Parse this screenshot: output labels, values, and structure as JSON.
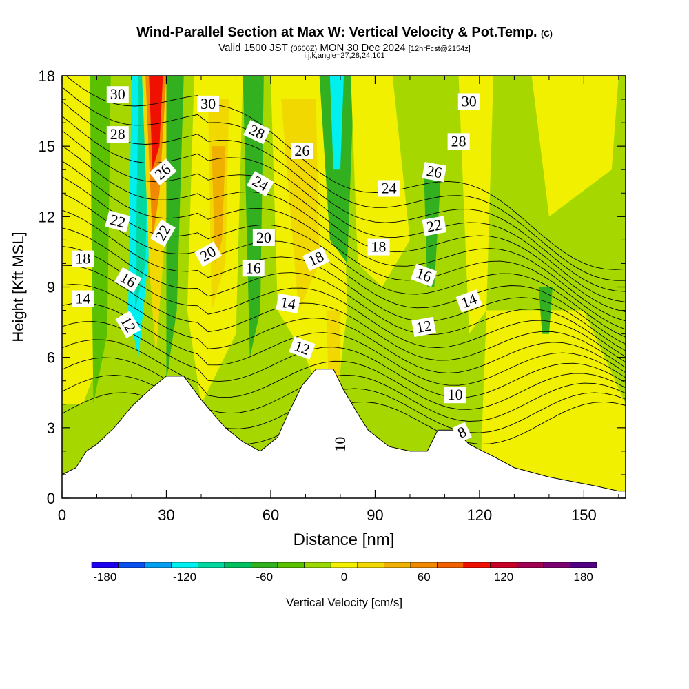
{
  "header": {
    "title_main": "Wind-Parallel Section at Max W: Vertical Velocity & Pot.Temp.",
    "title_mark": "(C)",
    "valid_a": "Valid 1500 JST ",
    "valid_b": "(0600Z)",
    "valid_c": " MON 30 Dec 2024 ",
    "valid_d": "[12hrFcst@2154z]",
    "indices": "i,j,k,angle=27,28,24,101"
  },
  "chart_data": {
    "type": "heatmap",
    "xlabel": "Distance [nm]",
    "ylabel": "Height [Kft MSL]",
    "xlim": [
      0,
      162
    ],
    "ylim": [
      0,
      18
    ],
    "xticks": [
      0,
      30,
      60,
      90,
      120,
      150
    ],
    "yticks": [
      0,
      3,
      6,
      9,
      12,
      15,
      18
    ],
    "colorbar": {
      "label": "Vertical Velocity [cm/s]",
      "ticks": [
        -180,
        -120,
        -60,
        0,
        60,
        120,
        180
      ],
      "colors": [
        "#1c00f0",
        "#0a50f0",
        "#00a0f0",
        "#00f0f0",
        "#00d8a0",
        "#00c060",
        "#32b020",
        "#5ac000",
        "#9ad800",
        "#f0f000",
        "#f0d800",
        "#f0b000",
        "#f08800",
        "#f06000",
        "#f01000",
        "#c80028",
        "#a00050",
        "#7a0070",
        "#500080"
      ],
      "edges": [
        -190,
        -170,
        -150,
        -130,
        -110,
        -90,
        -70,
        -50,
        -30,
        -10,
        10,
        30,
        50,
        70,
        90,
        110,
        130,
        150,
        170,
        190
      ]
    },
    "background_color": "#a6d800",
    "updraft_color": "#f0f000",
    "terrain": [
      [
        0,
        1
      ],
      [
        4,
        1.3
      ],
      [
        7,
        2
      ],
      [
        10,
        2.3
      ],
      [
        15,
        3
      ],
      [
        20,
        3.9
      ],
      [
        25,
        4.6
      ],
      [
        30,
        5.2
      ],
      [
        35,
        5.2
      ],
      [
        40,
        4.2
      ],
      [
        44,
        3.5
      ],
      [
        47,
        3
      ],
      [
        52,
        2.4
      ],
      [
        57,
        2
      ],
      [
        62,
        2.6
      ],
      [
        65,
        3.6
      ],
      [
        69,
        4.8
      ],
      [
        73,
        5.5
      ],
      [
        78,
        5.5
      ],
      [
        81,
        4.6
      ],
      [
        85,
        3.6
      ],
      [
        88,
        2.9
      ],
      [
        94,
        2.2
      ],
      [
        100,
        2
      ],
      [
        105,
        2
      ],
      [
        108,
        2.9
      ],
      [
        113,
        2.9
      ],
      [
        117,
        2.3
      ],
      [
        121,
        2
      ],
      [
        125,
        1.7
      ],
      [
        130,
        1.3
      ],
      [
        135,
        1.1
      ],
      [
        140,
        0.9
      ],
      [
        147,
        0.7
      ],
      [
        154,
        0.5
      ],
      [
        160,
        0.3
      ],
      [
        162,
        0.3
      ]
    ],
    "contour_labels": [
      {
        "text": "30",
        "x": 16,
        "y": 17.2,
        "rot": 0
      },
      {
        "text": "30",
        "x": 42,
        "y": 16.8,
        "rot": 0
      },
      {
        "text": "30",
        "x": 117,
        "y": 16.9,
        "rot": 0
      },
      {
        "text": "28",
        "x": 16,
        "y": 15.5,
        "rot": 0
      },
      {
        "text": "28",
        "x": 56,
        "y": 15.6,
        "rot": 25
      },
      {
        "text": "28",
        "x": 114,
        "y": 15.2,
        "rot": 0
      },
      {
        "text": "26",
        "x": 29,
        "y": 13.9,
        "rot": -40
      },
      {
        "text": "26",
        "x": 69,
        "y": 14.8,
        "rot": 0
      },
      {
        "text": "26",
        "x": 107,
        "y": 13.9,
        "rot": 10
      },
      {
        "text": "24",
        "x": 57,
        "y": 13.4,
        "rot": 30
      },
      {
        "text": "24",
        "x": 94,
        "y": 13.2,
        "rot": 0
      },
      {
        "text": "22",
        "x": 16,
        "y": 11.8,
        "rot": 15
      },
      {
        "text": "22",
        "x": 29,
        "y": 11.3,
        "rot": -60
      },
      {
        "text": "22",
        "x": 107,
        "y": 11.6,
        "rot": -10
      },
      {
        "text": "20",
        "x": 42,
        "y": 10.4,
        "rot": -30
      },
      {
        "text": "20",
        "x": 58,
        "y": 11.1,
        "rot": 0
      },
      {
        "text": "18",
        "x": 6,
        "y": 10.2,
        "rot": 0
      },
      {
        "text": "18",
        "x": 73,
        "y": 10.2,
        "rot": -25
      },
      {
        "text": "18",
        "x": 91,
        "y": 10.7,
        "rot": 0
      },
      {
        "text": "16",
        "x": 19,
        "y": 9.3,
        "rot": 30
      },
      {
        "text": "16",
        "x": 55,
        "y": 9.8,
        "rot": 0
      },
      {
        "text": "16",
        "x": 104,
        "y": 9.5,
        "rot": 20
      },
      {
        "text": "14",
        "x": 6,
        "y": 8.5,
        "rot": 0
      },
      {
        "text": "14",
        "x": 65,
        "y": 8.3,
        "rot": 10
      },
      {
        "text": "14",
        "x": 117,
        "y": 8.4,
        "rot": -20
      },
      {
        "text": "12",
        "x": 19,
        "y": 7.4,
        "rot": 60
      },
      {
        "text": "12",
        "x": 69,
        "y": 6.4,
        "rot": 20
      },
      {
        "text": "12",
        "x": 104,
        "y": 7.3,
        "rot": -10
      },
      {
        "text": "10",
        "x": 80,
        "y": 2.3,
        "rot": -90
      },
      {
        "text": "10",
        "x": 113,
        "y": 4.4,
        "rot": 0
      },
      {
        "text": "8",
        "x": 115,
        "y": 2.8,
        "rot": -25
      }
    ]
  }
}
